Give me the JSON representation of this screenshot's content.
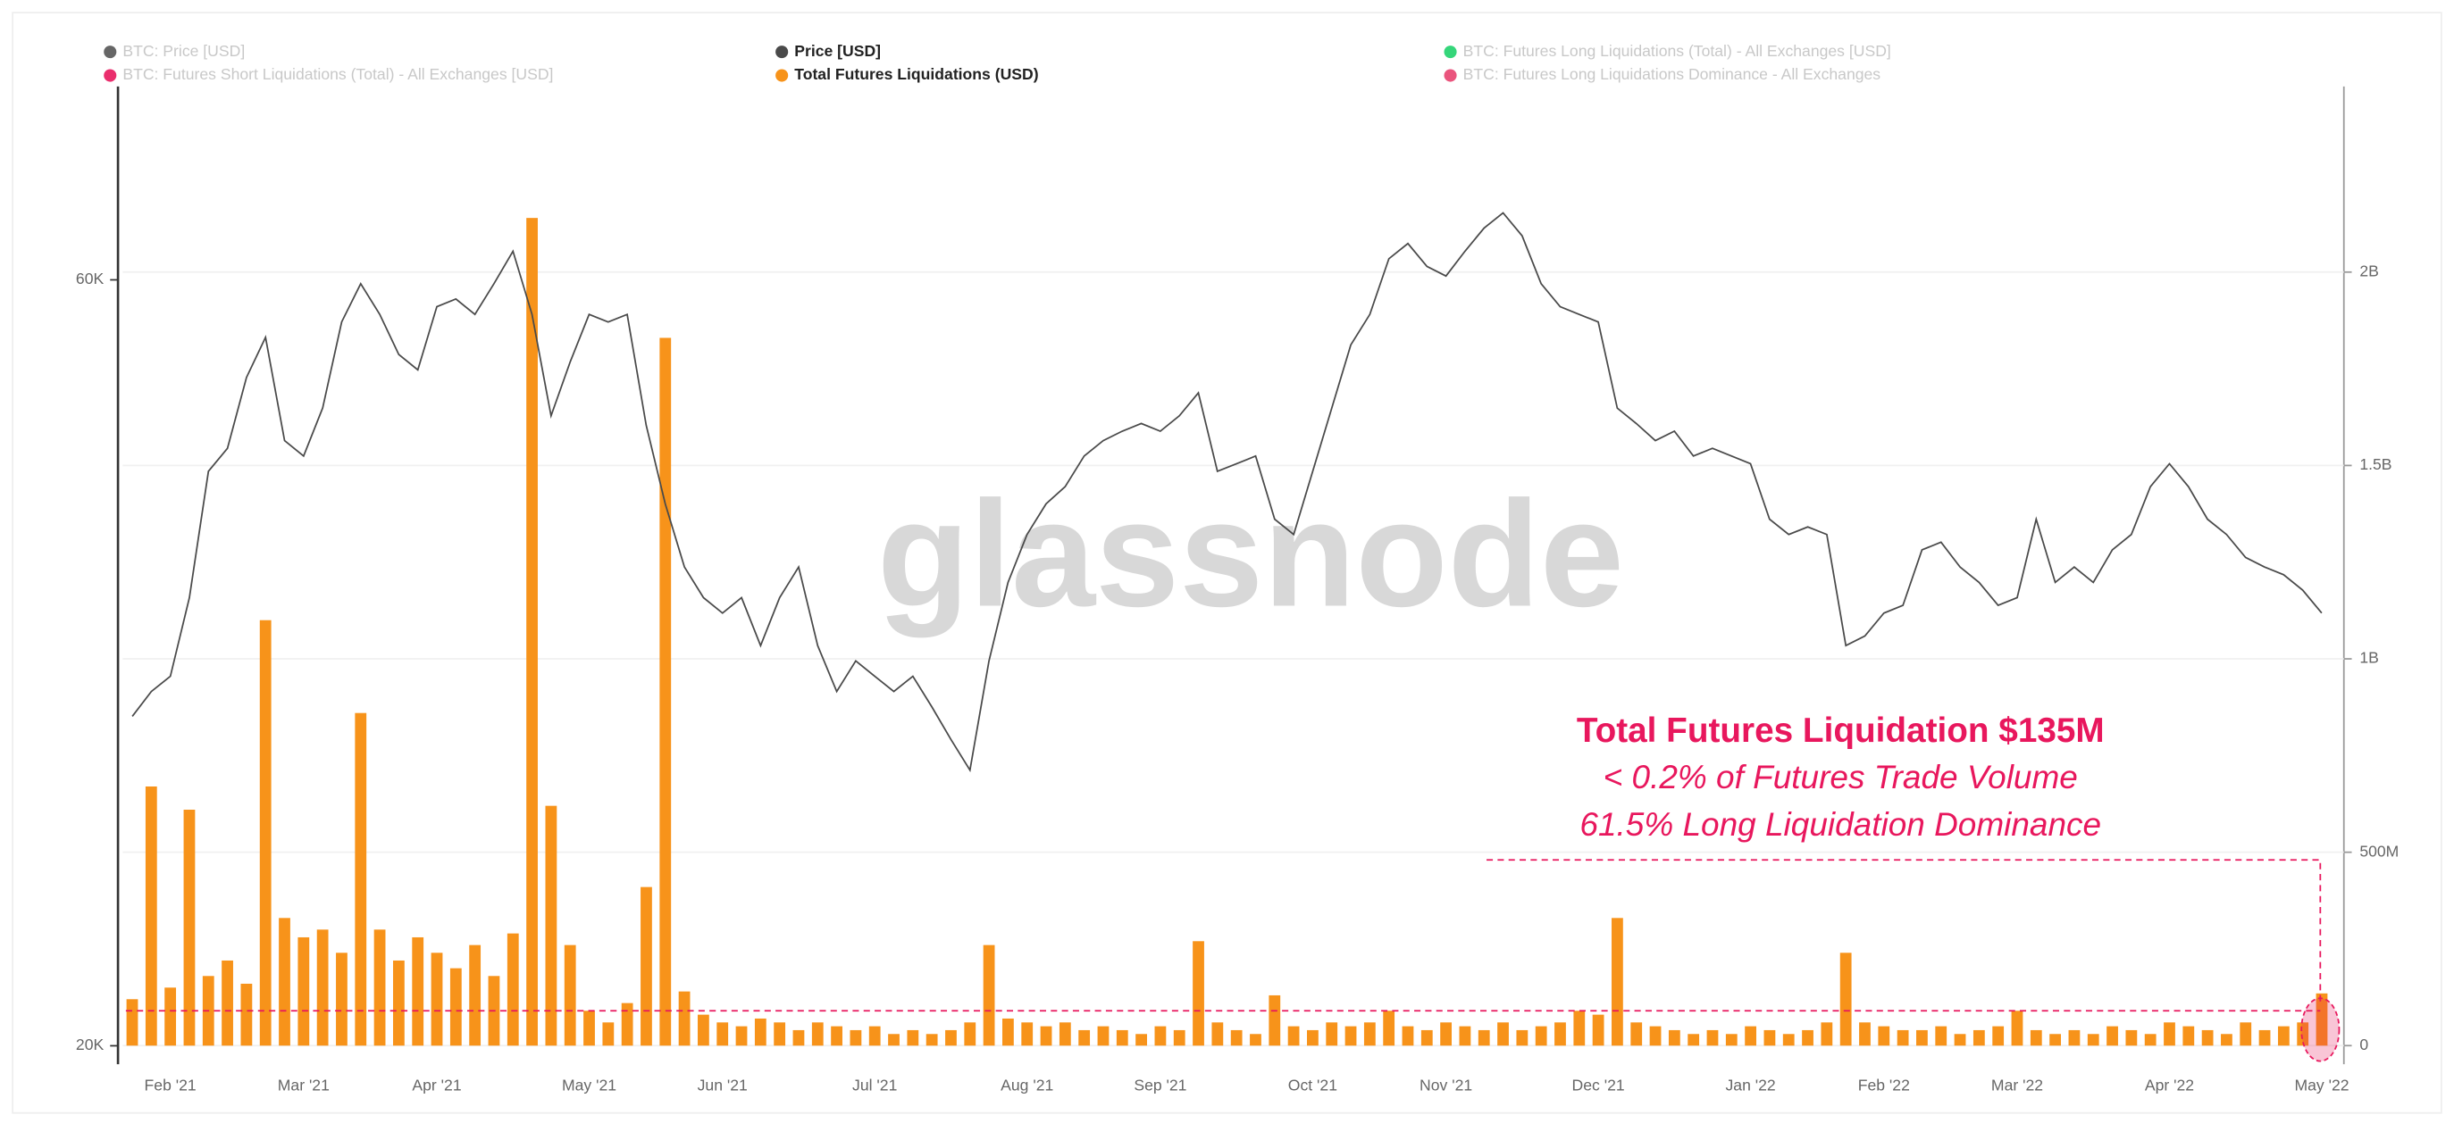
{
  "chart_data": {
    "type": "combo",
    "watermark": "glassnode",
    "annotations": [
      "Total Futures Liquidation $135M",
      "< 0.2% of Futures Trade Volume",
      "61.5% Long Liquidation Dominance"
    ],
    "annotation_color": "#e8175d",
    "categories": [
      null,
      null,
      "Feb '21",
      null,
      null,
      null,
      null,
      null,
      null,
      "Mar '21",
      null,
      null,
      null,
      null,
      null,
      null,
      "Apr '21",
      null,
      null,
      null,
      null,
      null,
      null,
      null,
      "May '21",
      null,
      null,
      null,
      null,
      null,
      null,
      "Jun '21",
      null,
      null,
      null,
      null,
      null,
      null,
      null,
      "Jul '21",
      null,
      null,
      null,
      null,
      null,
      null,
      null,
      "Aug '21",
      null,
      null,
      null,
      null,
      null,
      null,
      "Sep '21",
      null,
      null,
      null,
      null,
      null,
      null,
      null,
      "Oct '21",
      null,
      null,
      null,
      null,
      null,
      null,
      "Nov '21",
      null,
      null,
      null,
      null,
      null,
      null,
      null,
      "Dec '21",
      null,
      null,
      null,
      null,
      null,
      null,
      null,
      "Jan '22",
      null,
      null,
      null,
      null,
      null,
      null,
      "Feb '22",
      null,
      null,
      null,
      null,
      null,
      null,
      "Mar '22",
      null,
      null,
      null,
      null,
      null,
      null,
      null,
      "Apr '22",
      null,
      null,
      null,
      null,
      null,
      null,
      null,
      "May '22"
    ],
    "series": [
      {
        "name": "Price [USD]",
        "color": "#4a4a4a",
        "type": "line",
        "axis": "y",
        "values": [
          37200,
          38500,
          39300,
          43400,
          50000,
          51200,
          54900,
          57000,
          51600,
          50800,
          53300,
          57800,
          59800,
          58200,
          56100,
          55300,
          58600,
          59000,
          58200,
          59800,
          61500,
          58200,
          52900,
          55700,
          58200,
          57800,
          58200,
          52400,
          48300,
          45000,
          43400,
          42600,
          43400,
          40900,
          43400,
          45000,
          40900,
          38500,
          40100,
          39300,
          38500,
          39300,
          37700,
          36000,
          34400,
          40100,
          44200,
          46700,
          48300,
          49200,
          50800,
          51600,
          52100,
          52500,
          52100,
          52900,
          54100,
          50000,
          50400,
          50800,
          47500,
          46700,
          50000,
          53300,
          56600,
          58200,
          61100,
          61900,
          60700,
          60200,
          61500,
          62700,
          63500,
          62300,
          59800,
          58600,
          58200,
          57800,
          53300,
          52500,
          51600,
          52100,
          50800,
          51200,
          50800,
          50400,
          47500,
          46700,
          47100,
          46700,
          40900,
          41400,
          42600,
          43000,
          45900,
          46300,
          45000,
          44200,
          43000,
          43400,
          47500,
          44200,
          45000,
          44200,
          45900,
          46700,
          49200,
          50400,
          49200,
          47500,
          46700,
          45500,
          45000,
          44600,
          43800,
          42600
        ]
      },
      {
        "name": "Total Futures Liquidations (USD)",
        "color": "#f7931a",
        "type": "bar",
        "axis": "y2",
        "values": [
          120000000,
          670000000,
          150000000,
          610000000,
          180000000,
          220000000,
          160000000,
          1100000000,
          330000000,
          280000000,
          300000000,
          240000000,
          860000000,
          300000000,
          220000000,
          280000000,
          240000000,
          200000000,
          260000000,
          180000000,
          290000000,
          2140000000,
          620000000,
          260000000,
          90000000,
          60000000,
          110000000,
          410000000,
          1830000000,
          140000000,
          80000000,
          60000000,
          50000000,
          70000000,
          60000000,
          40000000,
          60000000,
          50000000,
          40000000,
          50000000,
          30000000,
          40000000,
          30000000,
          40000000,
          60000000,
          260000000,
          70000000,
          60000000,
          50000000,
          60000000,
          40000000,
          50000000,
          40000000,
          30000000,
          50000000,
          40000000,
          270000000,
          60000000,
          40000000,
          30000000,
          130000000,
          50000000,
          40000000,
          60000000,
          50000000,
          60000000,
          90000000,
          50000000,
          40000000,
          60000000,
          50000000,
          40000000,
          60000000,
          40000000,
          50000000,
          60000000,
          90000000,
          80000000,
          330000000,
          60000000,
          50000000,
          40000000,
          30000000,
          40000000,
          30000000,
          50000000,
          40000000,
          30000000,
          40000000,
          60000000,
          240000000,
          60000000,
          50000000,
          40000000,
          40000000,
          50000000,
          30000000,
          40000000,
          50000000,
          90000000,
          40000000,
          30000000,
          40000000,
          30000000,
          50000000,
          40000000,
          30000000,
          60000000,
          50000000,
          40000000,
          30000000,
          60000000,
          40000000,
          50000000,
          60000000,
          135000000
        ]
      }
    ],
    "inactive_legend": [
      {
        "name": "BTC: Price [USD]",
        "color": "#555555"
      },
      {
        "name": "BTC: Futures Short Liquidations (Total) - All Exchanges [USD]",
        "color": "#e8175d"
      },
      {
        "name": "BTC: Futures Long Liquidations (Total) - All Exchanges [USD]",
        "color": "#1fd16b"
      },
      {
        "name": "BTC: Futures Long Liquidations Dominance - All Exchanges",
        "color": "#e8416f"
      }
    ],
    "ylim": [
      19200,
      70100
    ],
    "yticks": [
      {
        "value": 20000,
        "label": "20K"
      },
      {
        "value": 60000,
        "label": "60K"
      }
    ],
    "y2lim": [
      -40000000,
      2480000000
    ],
    "y2ticks": [
      0,
      {
        "value": 500000000,
        "label": "500M"
      },
      {
        "value": 1000000000,
        "label": "1B"
      },
      {
        "value": 1500000000,
        "label": "1.5B"
      },
      {
        "value": 2000000000,
        "label": "2B"
      }
    ],
    "grid": true
  }
}
